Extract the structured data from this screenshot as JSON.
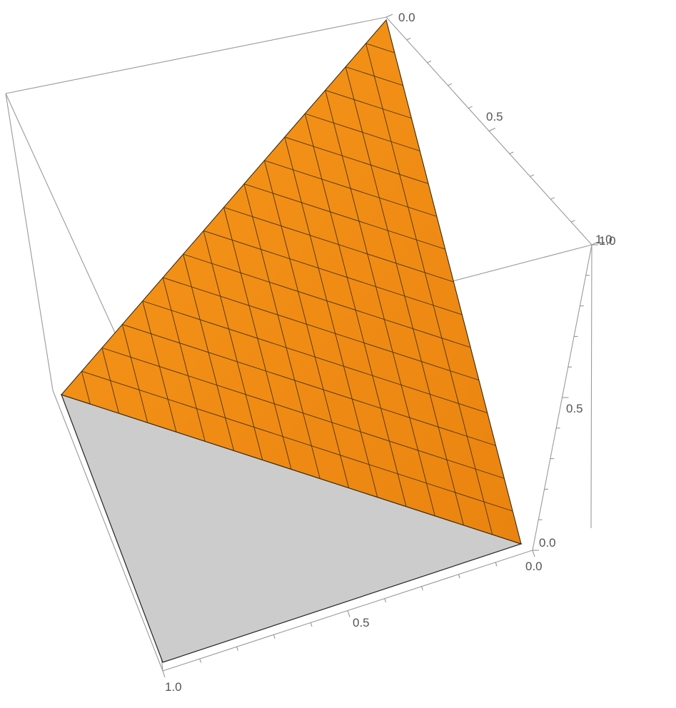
{
  "chart_data": {
    "type": "surface3d",
    "title": "",
    "surface": {
      "description_free": true,
      "vertices": [
        {
          "x": 0.0,
          "y": 0.0,
          "z": 1.0
        },
        {
          "x": 1.0,
          "y": 0.0,
          "z": 0.0
        },
        {
          "x": 0.0,
          "y": 1.0,
          "z": 0.0
        }
      ],
      "mesh_lines": 15,
      "color": "#f28c0f",
      "underside_color": "#cccccc",
      "mesh_color": "#4a3413"
    },
    "axes": {
      "x": {
        "range": [
          0,
          1
        ],
        "ticks": [
          "0.0",
          "0.5",
          "1.0"
        ]
      },
      "y": {
        "range": [
          0,
          1
        ],
        "ticks": [
          "0.0",
          "0.5",
          "1.0"
        ]
      },
      "z": {
        "range": [
          0,
          1
        ],
        "ticks": [
          "0.0",
          "0.5",
          "1.0"
        ]
      }
    },
    "tick_labels": {
      "top_axis": [
        "0.0",
        "0.5",
        "1.0"
      ],
      "right_vertical_axis": [
        "0.0",
        "0.5",
        "1.0"
      ],
      "bottom_axis": [
        "0.0",
        "0.5",
        "1.0"
      ]
    },
    "box": true,
    "grid": false
  }
}
